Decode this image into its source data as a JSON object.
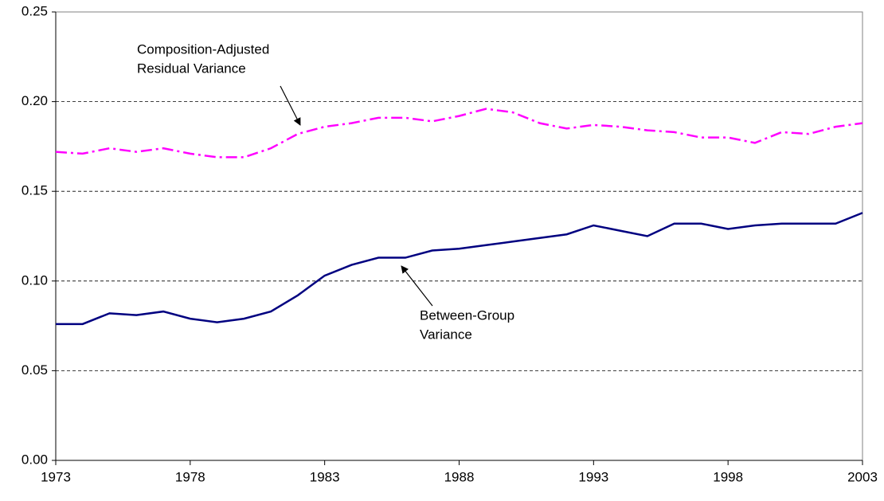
{
  "chart_data": {
    "type": "line",
    "x": [
      1973,
      1974,
      1975,
      1976,
      1977,
      1978,
      1979,
      1980,
      1981,
      1982,
      1983,
      1984,
      1985,
      1986,
      1987,
      1988,
      1989,
      1990,
      1991,
      1992,
      1993,
      1994,
      1995,
      1996,
      1997,
      1998,
      1999,
      2000,
      2001,
      2002,
      2003
    ],
    "series": [
      {
        "name_lines": [
          "Composition-Adjusted",
          "Residual Variance"
        ],
        "color": "#ff00ff",
        "dash": "dashdot",
        "values": [
          0.172,
          0.171,
          0.174,
          0.172,
          0.174,
          0.171,
          0.169,
          0.169,
          0.174,
          0.182,
          0.186,
          0.188,
          0.191,
          0.191,
          0.189,
          0.192,
          0.196,
          0.194,
          0.188,
          0.185,
          0.187,
          0.186,
          0.184,
          0.183,
          0.18,
          0.18,
          0.177,
          0.183,
          0.182,
          0.186,
          0.188
        ]
      },
      {
        "name_lines": [
          "Between-Group",
          "Variance"
        ],
        "color": "#000080",
        "dash": "solid",
        "values": [
          0.076,
          0.076,
          0.082,
          0.081,
          0.083,
          0.079,
          0.077,
          0.079,
          0.083,
          0.092,
          0.103,
          0.109,
          0.113,
          0.113,
          0.117,
          0.118,
          0.12,
          0.122,
          0.124,
          0.126,
          0.131,
          0.128,
          0.125,
          0.132,
          0.132,
          0.129,
          0.131,
          0.132,
          0.132,
          0.132,
          0.138
        ]
      }
    ],
    "xlim": [
      1973,
      2003
    ],
    "xticks": [
      1973,
      1978,
      1983,
      1988,
      1993,
      1998,
      2003
    ],
    "ylim": [
      0,
      0.25
    ],
    "yticks": [
      {
        "value": 0,
        "label": "0.00"
      },
      {
        "value": 0.05,
        "label": "0.05"
      },
      {
        "value": 0.1,
        "label": "0.10"
      },
      {
        "value": 0.15,
        "label": "0.15"
      },
      {
        "value": 0.2,
        "label": "0.20"
      },
      {
        "value": 0.25,
        "label": "0.25"
      }
    ],
    "grid": true
  }
}
